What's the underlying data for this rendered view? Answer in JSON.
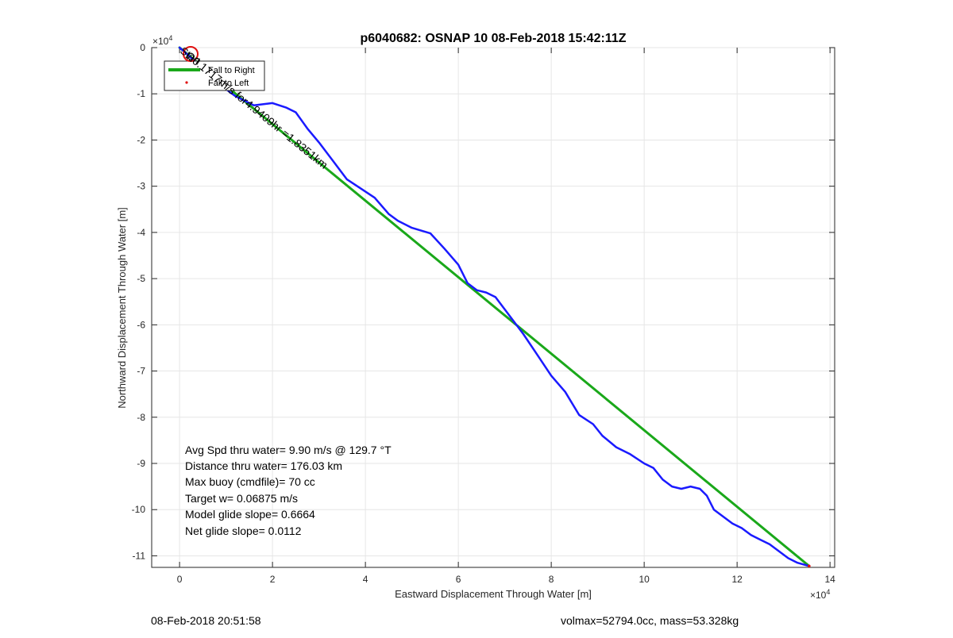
{
  "chart_data": {
    "type": "line",
    "title": "p6040682: OSNAP 10 08-Feb-2018 15:42:11Z",
    "xlabel": "Eastward Displacement Through Water [m]",
    "ylabel": "Northward Displacement Through Water [m]",
    "xlim": [
      -0.6,
      14.1
    ],
    "ylim": [
      -11.25,
      0
    ],
    "axis_multiplier": "×10",
    "axis_multiplier_exp": "4",
    "x_ticks": [
      0,
      2,
      4,
      6,
      8,
      10,
      12,
      14
    ],
    "y_ticks": [
      0,
      -1,
      -2,
      -3,
      -4,
      -5,
      -6,
      -7,
      -8,
      -9,
      -10,
      -11
    ],
    "x_tick_labels": [
      "0",
      "2",
      "4",
      "6",
      "8",
      "10",
      "12",
      "14"
    ],
    "y_tick_labels": [
      "0",
      "-1",
      "-2",
      "-3",
      "-4",
      "-5",
      "-6",
      "-7",
      "-8",
      "-9",
      "-10",
      "-11"
    ],
    "grid": true,
    "legend": {
      "placement": "top-left",
      "entries": [
        {
          "label": "Fall to Right",
          "color": "#1aa81a"
        },
        {
          "label": "Fall to Left",
          "color": "#e01010"
        }
      ]
    },
    "series": [
      {
        "name": "Fall to Right",
        "color": "#1aa81a",
        "x": [
          0.0,
          13.55
        ],
        "y": [
          0.0,
          -11.22
        ]
      },
      {
        "color": "#1a1aff",
        "x": [
          0.0,
          0.4,
          0.8,
          1.2,
          1.6,
          2.0,
          2.3,
          2.5,
          2.75,
          3.0,
          3.3,
          3.6,
          3.9,
          4.2,
          4.5,
          4.7,
          5.0,
          5.4,
          5.7,
          6.0,
          6.2,
          6.4,
          6.6,
          6.8,
          7.1,
          7.4,
          7.7,
          8.0,
          8.3,
          8.6,
          8.9,
          9.1,
          9.4,
          9.7,
          10.0,
          10.2,
          10.4,
          10.6,
          10.8,
          11.0,
          11.2,
          11.35,
          11.5,
          11.7,
          11.9,
          12.1,
          12.3,
          12.5,
          12.7,
          12.9,
          13.1,
          13.3,
          13.55
        ],
        "y": [
          0.0,
          -0.35,
          -0.75,
          -1.05,
          -1.25,
          -1.2,
          -1.3,
          -1.4,
          -1.75,
          -2.05,
          -2.45,
          -2.85,
          -3.05,
          -3.25,
          -3.6,
          -3.75,
          -3.9,
          -4.02,
          -4.35,
          -4.7,
          -5.1,
          -5.25,
          -5.3,
          -5.4,
          -5.8,
          -6.2,
          -6.65,
          -7.1,
          -7.45,
          -7.95,
          -8.15,
          -8.4,
          -8.65,
          -8.8,
          -9.0,
          -9.1,
          -9.35,
          -9.5,
          -9.55,
          -9.5,
          -9.55,
          -9.7,
          -10.0,
          -10.15,
          -10.3,
          -10.4,
          -10.55,
          -10.65,
          -10.75,
          -10.9,
          -11.05,
          -11.15,
          -11.22
        ]
      }
    ],
    "annotations": {
      "start_marker_label": "Start",
      "rotated_text": "Ω0.1717m/s for4.9409hr =1.8351km",
      "stats": [
        "Avg Spd thru water=  9.90 m/s @ 129.7 °T",
        "Distance thru water= 176.03 km",
        "Max buoy (cmdfile)= 70 cc",
        "Target w= 0.06875 m/s",
        "Model glide slope= 0.6664",
        "Net glide slope= 0.0112"
      ]
    }
  },
  "footer": {
    "timestamp": "08-Feb-2018 20:51:58",
    "params": "volmax=52794.0cc, mass=53.328kg"
  }
}
